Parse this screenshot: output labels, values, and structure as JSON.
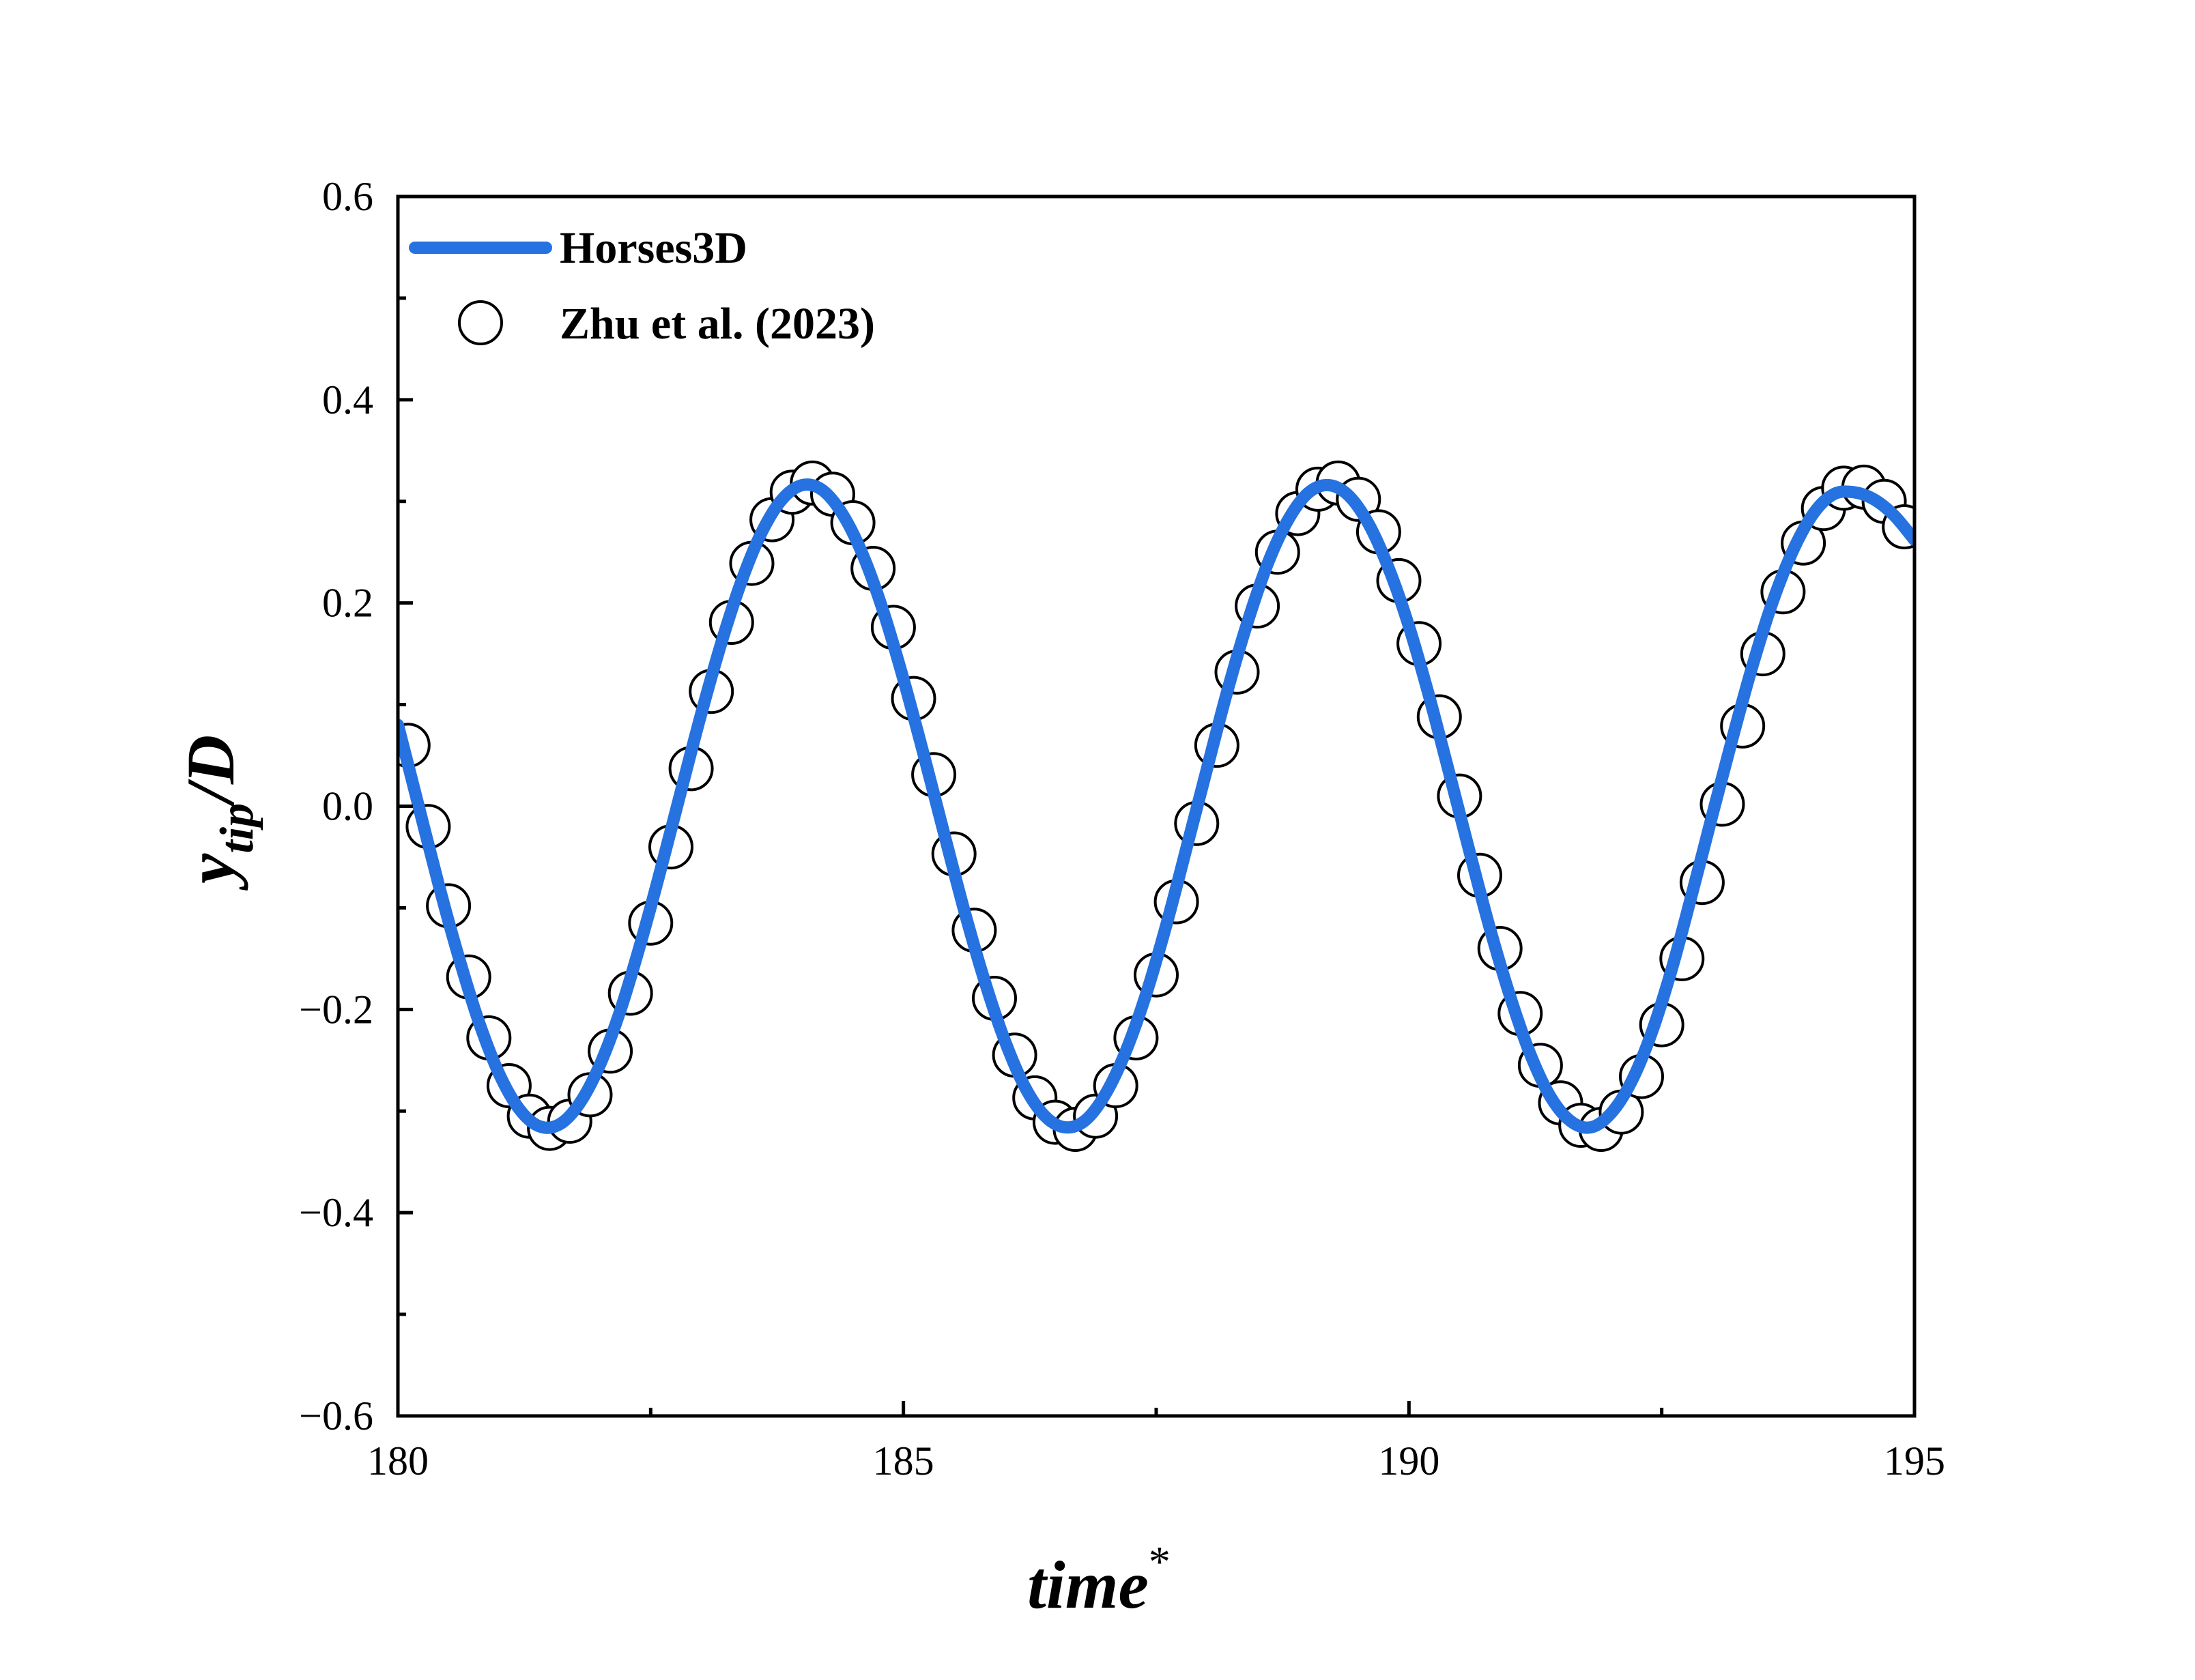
{
  "chart_data": {
    "type": "line",
    "xlim": [
      180,
      195
    ],
    "ylim": [
      -0.6,
      0.6
    ],
    "x_ticks": [
      "180",
      "185",
      "190",
      "195"
    ],
    "y_ticks": [
      "−0.6",
      "−0.4",
      "−0.2",
      "0.0",
      "0.2",
      "0.4",
      "0.6"
    ],
    "xlabel": {
      "main": "time",
      "sup": "*"
    },
    "ylabel": {
      "main": "y",
      "sub": "tip",
      "rest": "/D"
    },
    "legend_position": "top-left",
    "series": [
      {
        "name": "Horses3D",
        "style": "line",
        "color": "#2672E0",
        "x": [
          180.0,
          180.2,
          180.4,
          180.6,
          180.8,
          181.0,
          181.2,
          181.4,
          181.6,
          181.8,
          182.0,
          182.2,
          182.4,
          182.6,
          182.8,
          183.0,
          183.2,
          183.4,
          183.6,
          183.8,
          184.0,
          184.2,
          184.4,
          184.6,
          184.8,
          185.0,
          185.2,
          185.4,
          185.6,
          185.8,
          186.0,
          186.2,
          186.4,
          186.6,
          186.8,
          187.0,
          187.2,
          187.4,
          187.6,
          187.8,
          188.0,
          188.2,
          188.4,
          188.6,
          188.8,
          189.0,
          189.2,
          189.4,
          189.6,
          189.8,
          190.0,
          190.2,
          190.4,
          190.6,
          190.8,
          191.0,
          191.2,
          191.4,
          191.6,
          191.8,
          192.0,
          192.2,
          192.4,
          192.6,
          192.8,
          193.0,
          193.2,
          193.4,
          193.6,
          193.8,
          194.0,
          194.2,
          194.4,
          194.6,
          194.8,
          195.0
        ],
        "y": [
          0.08,
          0.002,
          -0.076,
          -0.148,
          -0.212,
          -0.263,
          -0.298,
          -0.315,
          -0.313,
          -0.292,
          -0.254,
          -0.201,
          -0.135,
          -0.062,
          0.015,
          0.091,
          0.161,
          0.222,
          0.27,
          0.302,
          0.316,
          0.311,
          0.287,
          0.247,
          0.192,
          0.125,
          0.051,
          -0.026,
          -0.102,
          -0.171,
          -0.23,
          -0.276,
          -0.305,
          -0.316,
          -0.309,
          -0.283,
          -0.241,
          -0.185,
          -0.117,
          -0.041,
          0.036,
          0.112,
          0.18,
          0.238,
          0.281,
          0.308,
          0.316,
          0.306,
          0.278,
          0.234,
          0.177,
          0.108,
          0.032,
          -0.045,
          -0.12,
          -0.187,
          -0.244,
          -0.286,
          -0.31,
          -0.316,
          -0.302,
          -0.271,
          -0.223,
          -0.16,
          -0.086,
          -0.009,
          0.067,
          0.139,
          0.202,
          0.252,
          0.288,
          0.307,
          0.309,
          0.302,
          0.286,
          0.262
        ]
      },
      {
        "name": "Zhu et al. (2023)",
        "style": "circle-markers",
        "color": "#000000",
        "x": [
          180.1,
          180.3,
          180.5,
          180.7,
          180.9,
          181.1,
          181.3,
          181.5,
          181.7,
          181.9,
          182.1,
          182.3,
          182.5,
          182.7,
          182.9,
          183.1,
          183.3,
          183.5,
          183.7,
          183.9,
          184.1,
          184.3,
          184.5,
          184.7,
          184.9,
          185.1,
          185.3,
          185.5,
          185.7,
          185.9,
          186.1,
          186.3,
          186.5,
          186.7,
          186.9,
          187.1,
          187.3,
          187.5,
          187.7,
          187.9,
          188.1,
          188.3,
          188.5,
          188.7,
          188.9,
          189.1,
          189.3,
          189.5,
          189.7,
          189.9,
          190.1,
          190.3,
          190.5,
          190.7,
          190.9,
          191.1,
          191.3,
          191.5,
          191.7,
          191.9,
          192.1,
          192.3,
          192.5,
          192.7,
          192.9,
          193.1,
          193.3,
          193.5,
          193.7,
          193.9,
          194.1,
          194.3,
          194.5,
          194.7,
          194.9
        ],
        "y": [
          0.06,
          -0.02,
          -0.098,
          -0.168,
          -0.228,
          -0.275,
          -0.305,
          -0.317,
          -0.31,
          -0.284,
          -0.241,
          -0.184,
          -0.115,
          -0.04,
          0.037,
          0.113,
          0.181,
          0.239,
          0.282,
          0.309,
          0.318,
          0.307,
          0.279,
          0.234,
          0.176,
          0.106,
          0.031,
          -0.047,
          -0.122,
          -0.189,
          -0.245,
          -0.287,
          -0.311,
          -0.318,
          -0.305,
          -0.275,
          -0.228,
          -0.166,
          -0.094,
          -0.017,
          0.06,
          0.132,
          0.197,
          0.25,
          0.288,
          0.312,
          0.318,
          0.302,
          0.27,
          0.222,
          0.16,
          0.088,
          0.01,
          -0.068,
          -0.14,
          -0.204,
          -0.255,
          -0.292,
          -0.314,
          -0.318,
          -0.301,
          -0.266,
          -0.215,
          -0.15,
          -0.075,
          0.002,
          0.079,
          0.15,
          0.211,
          0.259,
          0.293,
          0.313,
          0.314,
          0.3,
          0.275
        ]
      }
    ]
  }
}
